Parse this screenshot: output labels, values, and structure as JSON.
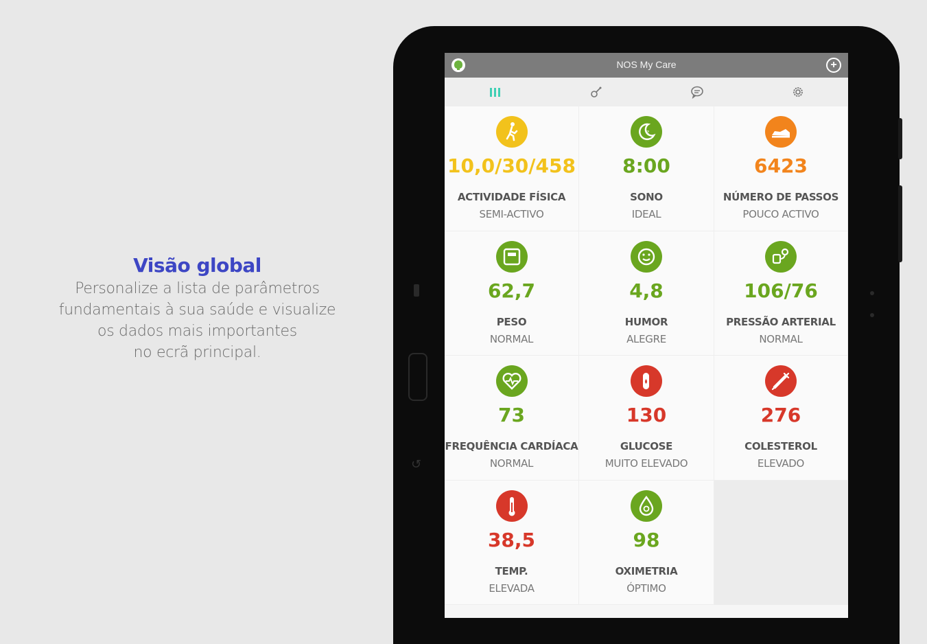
{
  "promo": {
    "title": "Visão global",
    "lines": [
      "Personalize a lista de parâmetros",
      "fundamentais à sua saúde e visualize",
      "os dados mais importantes",
      "no ecrã principal."
    ]
  },
  "app": {
    "title": "NOS My Care",
    "tabs": [
      {
        "name": "tab-dashboard",
        "icon": "grid-icon",
        "active": true
      },
      {
        "name": "tab-measure",
        "icon": "stethoscope-icon",
        "active": false
      },
      {
        "name": "tab-messages",
        "icon": "chat-icon",
        "active": false
      },
      {
        "name": "tab-settings",
        "icon": "gear-icon",
        "active": false
      }
    ]
  },
  "colors": {
    "yellow": "#f2c21c",
    "green": "#6aa61f",
    "orange": "#f2841c",
    "red": "#d7382a",
    "active_tab": "#3fcfb4"
  },
  "metrics": [
    {
      "id": "atividade",
      "icon": "walking-person-icon",
      "color": "#f2c21c",
      "value": "10,0/30/458",
      "label": "ACTIVIDADE FÍSICA",
      "status": "SEMI-ACTIVO"
    },
    {
      "id": "sono",
      "icon": "moon-icon",
      "color": "#6aa61f",
      "value": "8:00",
      "label": "SONO",
      "status": "IDEAL"
    },
    {
      "id": "passos",
      "icon": "shoe-icon",
      "color": "#f2841c",
      "value": "6423",
      "label": "NÚMERO DE PASSOS",
      "status": "POUCO ACTIVO"
    },
    {
      "id": "peso",
      "icon": "scale-icon",
      "color": "#6aa61f",
      "value": "62,7",
      "label": "PESO",
      "status": "NORMAL"
    },
    {
      "id": "humor",
      "icon": "smiley-icon",
      "color": "#6aa61f",
      "value": "4,8",
      "label": "HUMOR",
      "status": "ALEGRE"
    },
    {
      "id": "pressao",
      "icon": "blood-pressure-icon",
      "color": "#6aa61f",
      "value": "106/76",
      "label": "PRESSÃO ARTERIAL",
      "status": "NORMAL"
    },
    {
      "id": "frequencia",
      "icon": "heart-pulse-icon",
      "color": "#6aa61f",
      "value": "73",
      "label": "FREQUÊNCIA CARDÍACA",
      "status": "NORMAL"
    },
    {
      "id": "glucose",
      "icon": "finger-drop-icon",
      "color": "#d7382a",
      "value": "130",
      "label": "GLUCOSE",
      "status": "MUITO ELEVADO"
    },
    {
      "id": "colesterol",
      "icon": "syringe-icon",
      "color": "#d7382a",
      "value": "276",
      "label": "COLESTEROL",
      "status": "ELEVADO"
    },
    {
      "id": "temp",
      "icon": "thermometer-icon",
      "color": "#d7382a",
      "value": "38,5",
      "label": "TEMP.",
      "status": "ELEVADA"
    },
    {
      "id": "oximetria",
      "icon": "oxygen-drop-icon",
      "color": "#6aa61f",
      "value": "98",
      "label": "OXIMETRIA",
      "status": "ÓPTIMO"
    }
  ]
}
